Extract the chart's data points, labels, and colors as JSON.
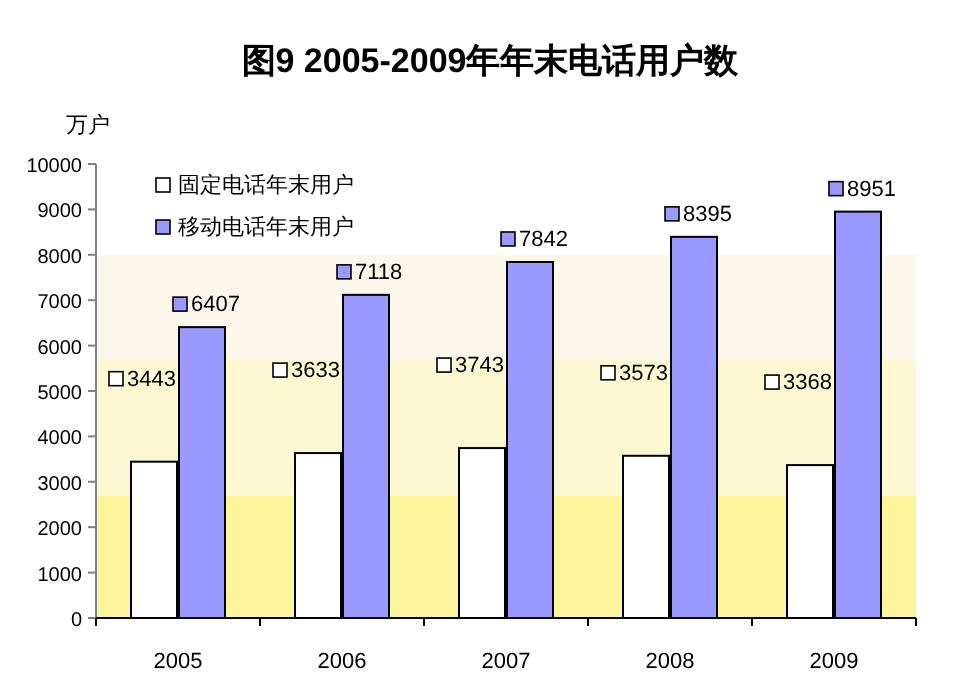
{
  "chart_data": {
    "type": "bar",
    "title": "图9  2005-2009年年末电话用户数",
    "ylabel": "万户",
    "categories": [
      "2005",
      "2006",
      "2007",
      "2008",
      "2009"
    ],
    "series": [
      {
        "name": "固定电话年末用户",
        "color": "#ffffff",
        "values": [
          3443,
          3633,
          3743,
          3573,
          3368
        ]
      },
      {
        "name": "移动电话年末用户",
        "color": "#9999ff",
        "values": [
          6407,
          7118,
          7842,
          8395,
          8951
        ]
      }
    ],
    "ylim": [
      0,
      10000
    ],
    "yticks": [
      0,
      1000,
      2000,
      3000,
      4000,
      5000,
      6000,
      7000,
      8000,
      9000,
      10000
    ],
    "bands": [
      {
        "axis": "y",
        "from": 0,
        "to": 2700,
        "color": "#fbf59c"
      },
      {
        "axis": "y",
        "from": 2700,
        "to": 5700,
        "color": "#fdf8d2"
      },
      {
        "axis": "y",
        "from": 5700,
        "to": 8000,
        "color": "#fcf7ea"
      }
    ],
    "data_labels": true,
    "legend": "top left",
    "grid": false
  }
}
